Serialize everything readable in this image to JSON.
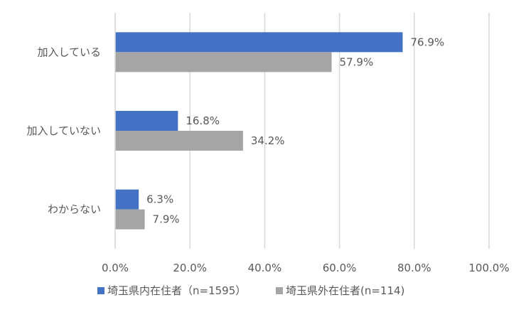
{
  "chart_data": {
    "type": "bar",
    "orientation": "horizontal",
    "categories": [
      "加入している",
      "加入していない",
      "わからない"
    ],
    "series": [
      {
        "name": "埼玉県内在住者（n=1595）",
        "values": [
          76.9,
          16.8,
          6.3
        ],
        "labels": [
          "76.9%",
          "16.8%",
          "6.3%"
        ],
        "color": "#4472C4"
      },
      {
        "name": "埼玉県外在住者(n=114)",
        "values": [
          57.9,
          34.2,
          7.9
        ],
        "labels": [
          "57.9%",
          "34.2%",
          "7.9%"
        ],
        "color": "#A5A5A5"
      }
    ],
    "xlim": [
      0,
      100
    ],
    "x_ticks": [
      "0.0%",
      "20.0%",
      "40.0%",
      "60.0%",
      "80.0%",
      "100.0%"
    ],
    "grid": "vertical",
    "gridline_color": "#D9D9D9",
    "legend_position": "bottom",
    "title": "",
    "xlabel": "",
    "ylabel": ""
  }
}
